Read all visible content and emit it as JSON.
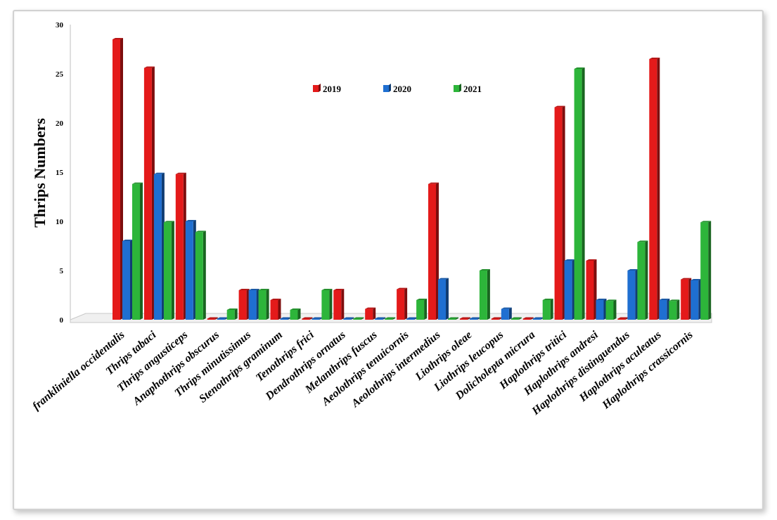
{
  "chart_data": {
    "type": "bar",
    "title": "",
    "xlabel": "",
    "ylabel": "Thrips Numbers",
    "ylim": [
      0,
      30
    ],
    "yticks": [
      0,
      5,
      10,
      15,
      20,
      25,
      30
    ],
    "grid": false,
    "legend_position": "top-center",
    "categories": [
      "frankliniella occidentalis",
      "Thrips tabaci",
      "Thrips angusticeps",
      "Anaphothrips obscurus",
      "Thrips minutissimus",
      "Stenothrips graminum",
      "Tenothrips frici",
      "Dendrothrips ornatus",
      "Melanthrips fuscus",
      "Aeolothrips tenuicornis",
      "Aeolothrips intermedius",
      "Liothrips oleae",
      "Liothrips leucopus",
      "Dolicholepta micrura",
      "Haplothrips tritici",
      "Haplothrips andresi",
      "Haplothrips distinguendus",
      "Haplothrips aculeatus",
      "Haplothrips crassicornis"
    ],
    "series": [
      {
        "name": "2019",
        "color": "#e41a1a",
        "values": [
          28.5,
          25.6,
          14.8,
          0,
          3,
          2,
          0,
          3,
          1.1,
          3.1,
          13.8,
          0,
          0,
          0,
          21.6,
          6,
          0,
          26.5,
          4.1
        ]
      },
      {
        "name": "2020",
        "color": "#1f6fd1",
        "values": [
          8,
          14.8,
          10,
          0,
          3,
          0,
          0,
          0,
          0,
          0,
          4.1,
          0,
          1.1,
          0,
          6,
          2,
          5,
          2,
          4
        ]
      },
      {
        "name": "2021",
        "color": "#2db53a",
        "values": [
          13.8,
          9.9,
          8.9,
          1,
          3,
          1,
          3,
          0,
          0,
          2,
          0,
          5,
          0,
          2,
          25.5,
          1.9,
          7.9,
          1.9,
          9.9
        ]
      }
    ]
  }
}
